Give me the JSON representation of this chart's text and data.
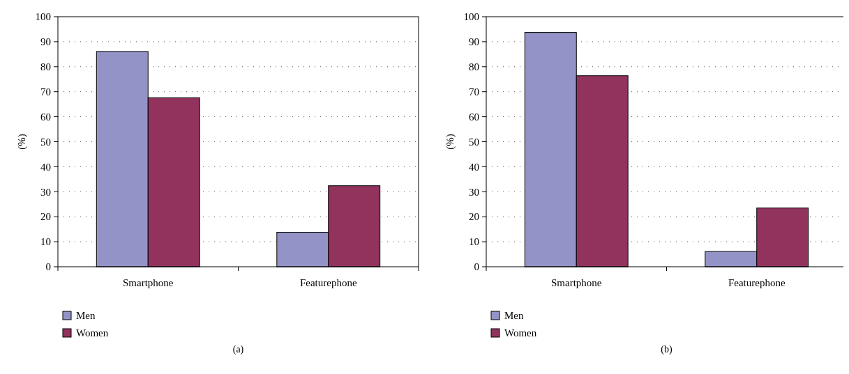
{
  "chart_data": [
    {
      "type": "bar",
      "categories": [
        "Smartphone",
        "Featurephone"
      ],
      "ylabel": "(%)",
      "ylim": [
        0,
        100
      ],
      "yticks": [
        0,
        10,
        20,
        30,
        40,
        50,
        60,
        70,
        80,
        90,
        100
      ],
      "grid": "y",
      "legend": "bottom",
      "annotations": [
        "(a)"
      ],
      "series": [
        {
          "name": "Men",
          "color": "#9493c7",
          "values": [
            86.1,
            13.8
          ]
        },
        {
          "name": "Women",
          "color": "#92335e",
          "values": [
            67.6,
            32.4
          ]
        }
      ]
    },
    {
      "type": "bar",
      "categories": [
        "Smartphone",
        "Featurephone"
      ],
      "ylabel": "(%)",
      "ylim": [
        0,
        100
      ],
      "yticks": [
        0,
        10,
        20,
        30,
        40,
        50,
        60,
        70,
        80,
        90,
        100
      ],
      "grid": "y",
      "legend": "bottom",
      "annotations": [
        "(b)"
      ],
      "series": [
        {
          "name": "Men",
          "color": "#9493c7",
          "values": [
            93.7,
            6.1
          ]
        },
        {
          "name": "Women",
          "color": "#92335e",
          "values": [
            76.4,
            23.5
          ]
        }
      ]
    }
  ]
}
